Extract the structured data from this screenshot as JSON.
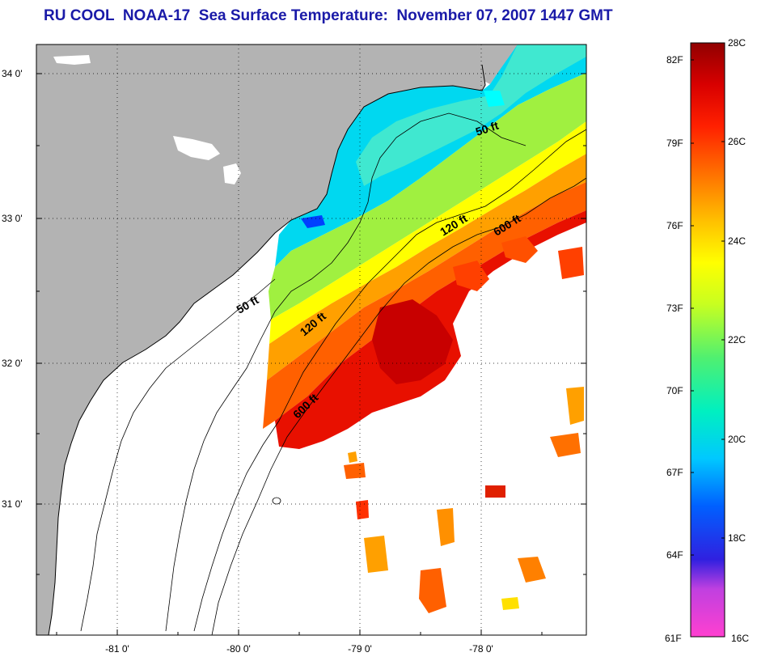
{
  "title": "RU COOL  NOAA-17  Sea Surface Temperature:  November 07, 2007 1447 GMT",
  "colors": {
    "land": "#b3b3b3",
    "title": "#1a1aa8",
    "coast": "#000000",
    "colorbar": [
      "#ff40d0",
      "#c040e0",
      "#3020e0",
      "#0060ff",
      "#00c8ff",
      "#00f0c0",
      "#50f070",
      "#c8ff20",
      "#ffff00",
      "#ffc000",
      "#ff7000",
      "#ff2000",
      "#d80000",
      "#900000"
    ]
  },
  "map": {
    "lat_labels": [
      {
        "value": 34,
        "label": "34 0'"
      },
      {
        "value": 33,
        "label": "33 0'"
      },
      {
        "value": 32,
        "label": "32 0'"
      },
      {
        "value": 31,
        "label": "31 0'"
      }
    ],
    "lon_labels": [
      {
        "value": -81,
        "label": "-81 0'"
      },
      {
        "value": -80,
        "label": "-80 0'"
      },
      {
        "value": -79,
        "label": "-79 0'"
      },
      {
        "value": -78,
        "label": "-78 0'"
      }
    ],
    "contour_labels": [
      {
        "text": "50 ft",
        "lon": -78.05,
        "lat": 33.62
      },
      {
        "text": "120 ft",
        "lon": -78.2,
        "lat": 32.98
      },
      {
        "text": "600 ft",
        "lon": -77.7,
        "lat": 32.95
      },
      {
        "text": "50 ft",
        "lon": -80.0,
        "lat": 32.47
      },
      {
        "text": "120 ft",
        "lon": -79.55,
        "lat": 32.25
      },
      {
        "text": "600 ft",
        "lon": -79.45,
        "lat": 31.72
      }
    ]
  },
  "colorbar": {
    "fahrenheit": [
      "82F",
      "79F",
      "76F",
      "73F",
      "70F",
      "67F",
      "64F",
      "61F"
    ],
    "celsius": [
      "28C",
      "26C",
      "24C",
      "22C",
      "20C",
      "18C",
      "16C"
    ]
  }
}
